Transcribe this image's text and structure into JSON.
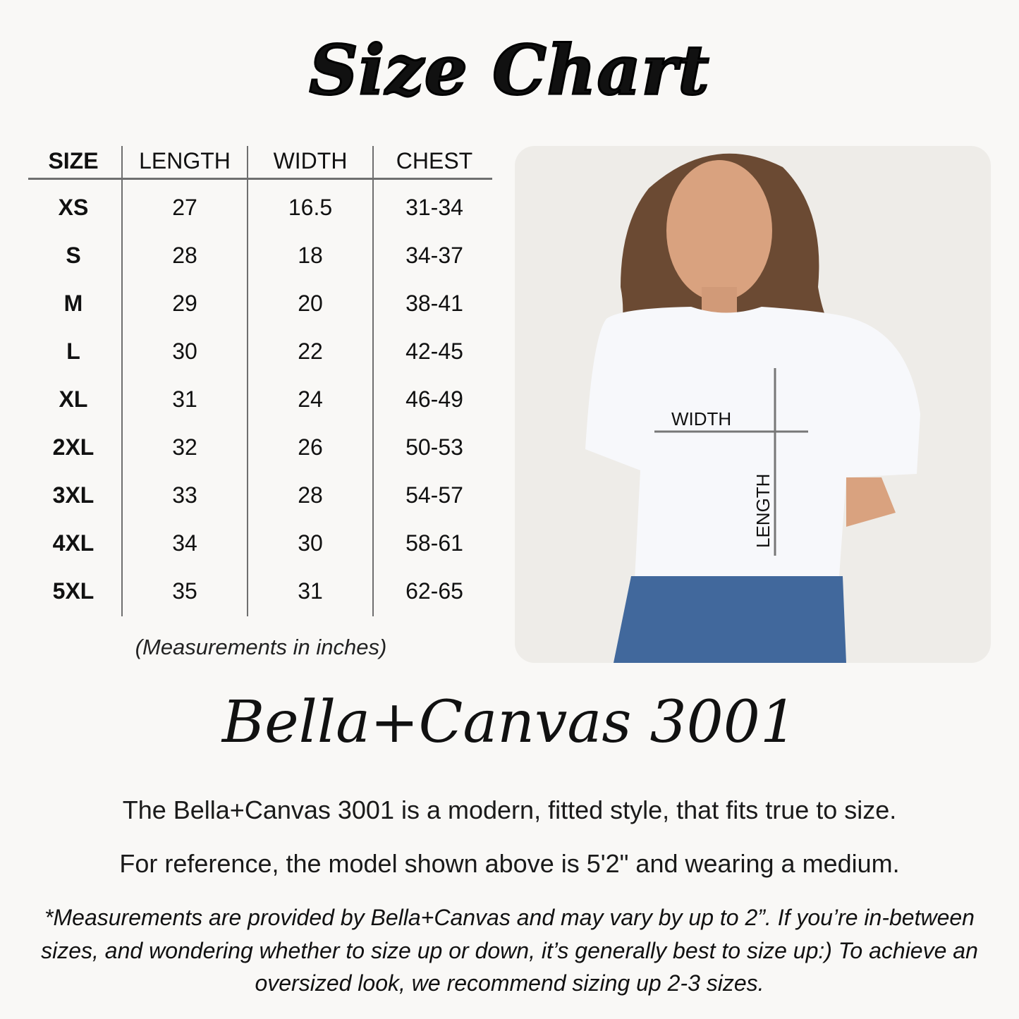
{
  "title": "Size Chart",
  "table": {
    "headers": [
      "SIZE",
      "LENGTH",
      "WIDTH",
      "CHEST"
    ],
    "rows": [
      [
        "XS",
        "27",
        "16.5",
        "31-34"
      ],
      [
        "S",
        "28",
        "18",
        "34-37"
      ],
      [
        "M",
        "29",
        "20",
        "38-41"
      ],
      [
        "L",
        "30",
        "22",
        "42-45"
      ],
      [
        "XL",
        "31",
        "24",
        "46-49"
      ],
      [
        "2XL",
        "32",
        "26",
        "50-53"
      ],
      [
        "3XL",
        "33",
        "28",
        "54-57"
      ],
      [
        "4XL",
        "34",
        "30",
        "58-61"
      ],
      [
        "5XL",
        "35",
        "31",
        "62-65"
      ]
    ],
    "units_note": "(Measurements in inches)"
  },
  "photo": {
    "width_label": "WIDTH",
    "length_label": "LENGTH"
  },
  "brand": "Bella+Canvas 3001",
  "description": [
    "The Bella+Canvas 3001 is a modern, fitted style, that fits true to size.",
    "For reference, the model shown above is 5'2\" and wearing a medium."
  ],
  "footnote": "*Measurements are provided by Bella+Canvas and may vary by up to 2”. If you’re in-between sizes, and wondering whether to size up or down, it’s generally best to size up:) To achieve an oversized look, we recommend sizing up 2-3 sizes."
}
